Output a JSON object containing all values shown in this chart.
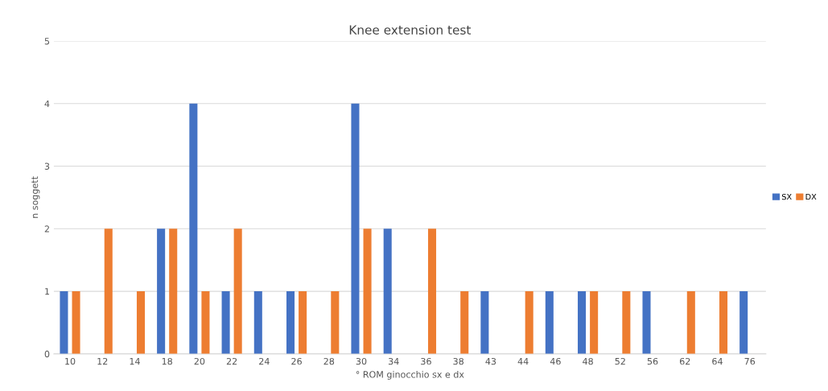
{
  "chart_data": {
    "type": "bar",
    "title": "Knee extension test",
    "xlabel": "° ROM ginocchio sx e dx",
    "ylabel": "n soggett",
    "categories": [
      "10",
      "12",
      "14",
      "18",
      "20",
      "22",
      "24",
      "26",
      "28",
      "30",
      "34",
      "36",
      "38",
      "43",
      "44",
      "46",
      "48",
      "52",
      "56",
      "62",
      "64",
      "76"
    ],
    "series": [
      {
        "name": "SX",
        "color": "#4472c4",
        "values": [
          1,
          0,
          0,
          2,
          4,
          1,
          1,
          1,
          0,
          4,
          2,
          0,
          0,
          1,
          0,
          1,
          1,
          0,
          1,
          0,
          0,
          1
        ]
      },
      {
        "name": "DX",
        "color": "#ed7d31",
        "values": [
          1,
          2,
          1,
          2,
          1,
          2,
          0,
          1,
          1,
          2,
          0,
          2,
          1,
          0,
          1,
          0,
          1,
          1,
          0,
          1,
          1,
          0
        ]
      }
    ],
    "ylim": [
      0,
      5
    ],
    "yticks": [
      0,
      1,
      2,
      3,
      4,
      5
    ],
    "grid": "y",
    "legend": "right"
  }
}
